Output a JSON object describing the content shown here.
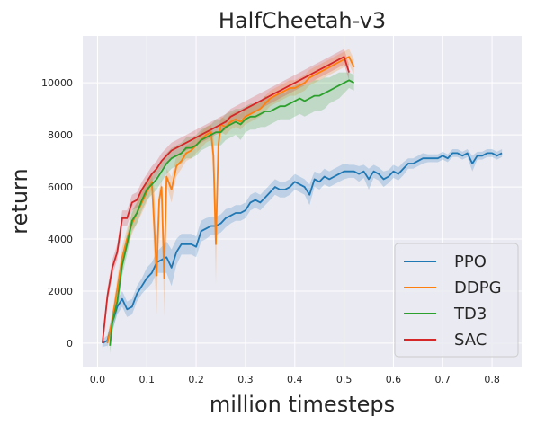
{
  "chart_data": {
    "type": "line",
    "title": "HalfCheetah-v3",
    "xlabel": "million timesteps",
    "ylabel": "return",
    "xlim": [
      -0.03,
      0.86
    ],
    "ylim": [
      -900,
      11800
    ],
    "xticks": [
      0.0,
      0.1,
      0.2,
      0.3,
      0.4,
      0.5,
      0.6,
      0.7,
      0.8
    ],
    "xtick_labels": [
      "0.0",
      "0.1",
      "0.2",
      "0.3",
      "0.4",
      "0.5",
      "0.6",
      "0.7",
      "0.8"
    ],
    "yticks": [
      0,
      2000,
      4000,
      6000,
      8000,
      10000
    ],
    "ytick_labels": [
      "0",
      "2000",
      "4000",
      "6000",
      "8000",
      "10000"
    ],
    "grid": true,
    "legend_position": "lower-right",
    "series": [
      {
        "name": "PPO",
        "color": "#1f77b4",
        "x": [
          0.01,
          0.02,
          0.03,
          0.04,
          0.05,
          0.06,
          0.07,
          0.08,
          0.09,
          0.1,
          0.11,
          0.12,
          0.13,
          0.14,
          0.15,
          0.16,
          0.17,
          0.18,
          0.19,
          0.2,
          0.21,
          0.22,
          0.23,
          0.24,
          0.25,
          0.26,
          0.27,
          0.28,
          0.29,
          0.3,
          0.31,
          0.32,
          0.33,
          0.34,
          0.35,
          0.36,
          0.37,
          0.38,
          0.39,
          0.4,
          0.41,
          0.42,
          0.43,
          0.44,
          0.45,
          0.46,
          0.47,
          0.48,
          0.49,
          0.5,
          0.51,
          0.52,
          0.53,
          0.54,
          0.55,
          0.56,
          0.57,
          0.58,
          0.59,
          0.6,
          0.61,
          0.62,
          0.63,
          0.64,
          0.65,
          0.66,
          0.67,
          0.68,
          0.69,
          0.7,
          0.71,
          0.72,
          0.73,
          0.74,
          0.75,
          0.76,
          0.77,
          0.78,
          0.79,
          0.8,
          0.81,
          0.82
        ],
        "y": [
          0,
          100,
          800,
          1400,
          1700,
          1300,
          1400,
          1900,
          2200,
          2500,
          2700,
          3100,
          3200,
          3300,
          2900,
          3500,
          3800,
          3800,
          3800,
          3700,
          4300,
          4400,
          4500,
          4500,
          4600,
          4800,
          4900,
          5000,
          5000,
          5100,
          5400,
          5500,
          5400,
          5600,
          5800,
          6000,
          5900,
          5900,
          6000,
          6200,
          6100,
          6000,
          5700,
          6300,
          6200,
          6400,
          6300,
          6400,
          6500,
          6600,
          6600,
          6600,
          6500,
          6600,
          6300,
          6600,
          6500,
          6300,
          6400,
          6600,
          6500,
          6700,
          6900,
          6900,
          7000,
          7100,
          7100,
          7100,
          7100,
          7200,
          7100,
          7300,
          7300,
          7200,
          7300,
          6900,
          7200,
          7200,
          7300,
          7300,
          7200,
          7300
        ],
        "band": [
          150,
          200,
          300,
          300,
          300,
          300,
          300,
          300,
          300,
          400,
          400,
          400,
          500,
          600,
          700,
          500,
          400,
          400,
          400,
          400,
          400,
          400,
          350,
          350,
          350,
          350,
          300,
          300,
          300,
          300,
          300,
          300,
          300,
          300,
          300,
          300,
          300,
          300,
          300,
          300,
          300,
          300,
          400,
          300,
          300,
          300,
          300,
          300,
          300,
          300,
          250,
          250,
          300,
          250,
          400,
          250,
          250,
          300,
          250,
          250,
          250,
          250,
          200,
          200,
          200,
          200,
          150,
          150,
          150,
          150,
          150,
          150,
          150,
          150,
          150,
          300,
          150,
          150,
          150,
          150,
          150,
          150
        ]
      },
      {
        "name": "DDPG",
        "color": "#ff7f0e",
        "x": [
          0.02,
          0.03,
          0.04,
          0.05,
          0.06,
          0.07,
          0.08,
          0.09,
          0.1,
          0.11,
          0.115,
          0.12,
          0.125,
          0.13,
          0.135,
          0.14,
          0.15,
          0.16,
          0.17,
          0.18,
          0.19,
          0.2,
          0.21,
          0.22,
          0.23,
          0.235,
          0.24,
          0.245,
          0.25,
          0.26,
          0.27,
          0.28,
          0.29,
          0.3,
          0.31,
          0.32,
          0.33,
          0.34,
          0.35,
          0.36,
          0.37,
          0.38,
          0.39,
          0.4,
          0.41,
          0.42,
          0.43,
          0.44,
          0.45,
          0.46,
          0.47,
          0.48,
          0.49,
          0.5,
          0.51,
          0.52
        ],
        "y": [
          0,
          900,
          2100,
          3300,
          4000,
          4600,
          5000,
          5400,
          5800,
          6200,
          4500,
          2600,
          5500,
          6000,
          2500,
          6400,
          5900,
          6800,
          7000,
          7300,
          7400,
          7600,
          7800,
          8000,
          8100,
          7200,
          3800,
          7600,
          8400,
          8300,
          8500,
          8600,
          8500,
          8700,
          8800,
          8900,
          9000,
          9200,
          9400,
          9500,
          9600,
          9700,
          9800,
          9800,
          9900,
          10000,
          10200,
          10300,
          10400,
          10500,
          10600,
          10700,
          10800,
          10900,
          11000,
          10600
        ],
        "band": [
          200,
          300,
          400,
          400,
          400,
          400,
          400,
          400,
          400,
          300,
          1500,
          1500,
          400,
          300,
          1500,
          300,
          500,
          400,
          300,
          300,
          300,
          300,
          300,
          300,
          300,
          800,
          1500,
          500,
          300,
          300,
          300,
          300,
          300,
          300,
          300,
          300,
          300,
          300,
          300,
          300,
          300,
          300,
          300,
          300,
          300,
          300,
          300,
          300,
          300,
          300,
          300,
          300,
          300,
          300,
          300,
          300
        ]
      },
      {
        "name": "TD3",
        "color": "#2ca02c",
        "x": [
          0.025,
          0.03,
          0.04,
          0.05,
          0.06,
          0.07,
          0.08,
          0.09,
          0.1,
          0.11,
          0.12,
          0.13,
          0.14,
          0.15,
          0.16,
          0.17,
          0.18,
          0.19,
          0.2,
          0.21,
          0.22,
          0.23,
          0.24,
          0.25,
          0.26,
          0.27,
          0.28,
          0.29,
          0.3,
          0.31,
          0.32,
          0.33,
          0.34,
          0.35,
          0.36,
          0.37,
          0.38,
          0.39,
          0.4,
          0.41,
          0.42,
          0.43,
          0.44,
          0.45,
          0.46,
          0.47,
          0.48,
          0.49,
          0.5,
          0.51,
          0.52
        ],
        "y": [
          -100,
          800,
          1600,
          3000,
          3800,
          4700,
          5000,
          5500,
          5900,
          6100,
          6300,
          6600,
          6900,
          7100,
          7200,
          7300,
          7500,
          7500,
          7600,
          7800,
          7900,
          8000,
          8100,
          8100,
          8300,
          8400,
          8500,
          8400,
          8600,
          8700,
          8700,
          8800,
          8900,
          8900,
          9000,
          9100,
          9100,
          9200,
          9300,
          9400,
          9300,
          9400,
          9500,
          9500,
          9600,
          9700,
          9800,
          9900,
          10000,
          10100,
          10000
        ],
        "band": [
          300,
          400,
          400,
          400,
          400,
          400,
          400,
          400,
          400,
          400,
          400,
          400,
          400,
          400,
          400,
          400,
          400,
          400,
          400,
          400,
          400,
          400,
          500,
          500,
          500,
          500,
          500,
          600,
          500,
          500,
          500,
          500,
          600,
          500,
          500,
          500,
          500,
          600,
          600,
          600,
          600,
          600,
          600,
          600,
          600,
          500,
          500,
          500,
          400,
          300,
          300
        ]
      },
      {
        "name": "SAC",
        "color": "#d62728",
        "x": [
          0.01,
          0.02,
          0.03,
          0.04,
          0.05,
          0.06,
          0.07,
          0.08,
          0.09,
          0.1,
          0.11,
          0.12,
          0.13,
          0.14,
          0.15,
          0.16,
          0.17,
          0.18,
          0.19,
          0.2,
          0.21,
          0.22,
          0.23,
          0.24,
          0.25,
          0.26,
          0.27,
          0.28,
          0.29,
          0.3,
          0.31,
          0.32,
          0.33,
          0.34,
          0.35,
          0.36,
          0.37,
          0.38,
          0.39,
          0.4,
          0.41,
          0.42,
          0.43,
          0.44,
          0.45,
          0.46,
          0.47,
          0.48,
          0.49,
          0.5,
          0.51
        ],
        "y": [
          0,
          1800,
          2900,
          3500,
          4800,
          4800,
          5400,
          5500,
          5900,
          6200,
          6500,
          6700,
          7000,
          7200,
          7400,
          7500,
          7600,
          7700,
          7800,
          7900,
          8000,
          8100,
          8200,
          8300,
          8400,
          8500,
          8700,
          8800,
          8900,
          9000,
          9100,
          9200,
          9300,
          9400,
          9500,
          9600,
          9700,
          9800,
          9900,
          10000,
          10100,
          10200,
          10300,
          10400,
          10500,
          10600,
          10700,
          10800,
          10900,
          11000,
          10400
        ],
        "band": [
          200,
          300,
          300,
          300,
          300,
          300,
          300,
          300,
          300,
          300,
          300,
          300,
          300,
          300,
          300,
          300,
          300,
          300,
          300,
          300,
          300,
          300,
          300,
          300,
          300,
          300,
          300,
          300,
          300,
          300,
          300,
          300,
          300,
          300,
          300,
          300,
          300,
          300,
          300,
          300,
          300,
          300,
          300,
          300,
          300,
          300,
          300,
          300,
          300,
          300,
          300
        ]
      }
    ]
  }
}
